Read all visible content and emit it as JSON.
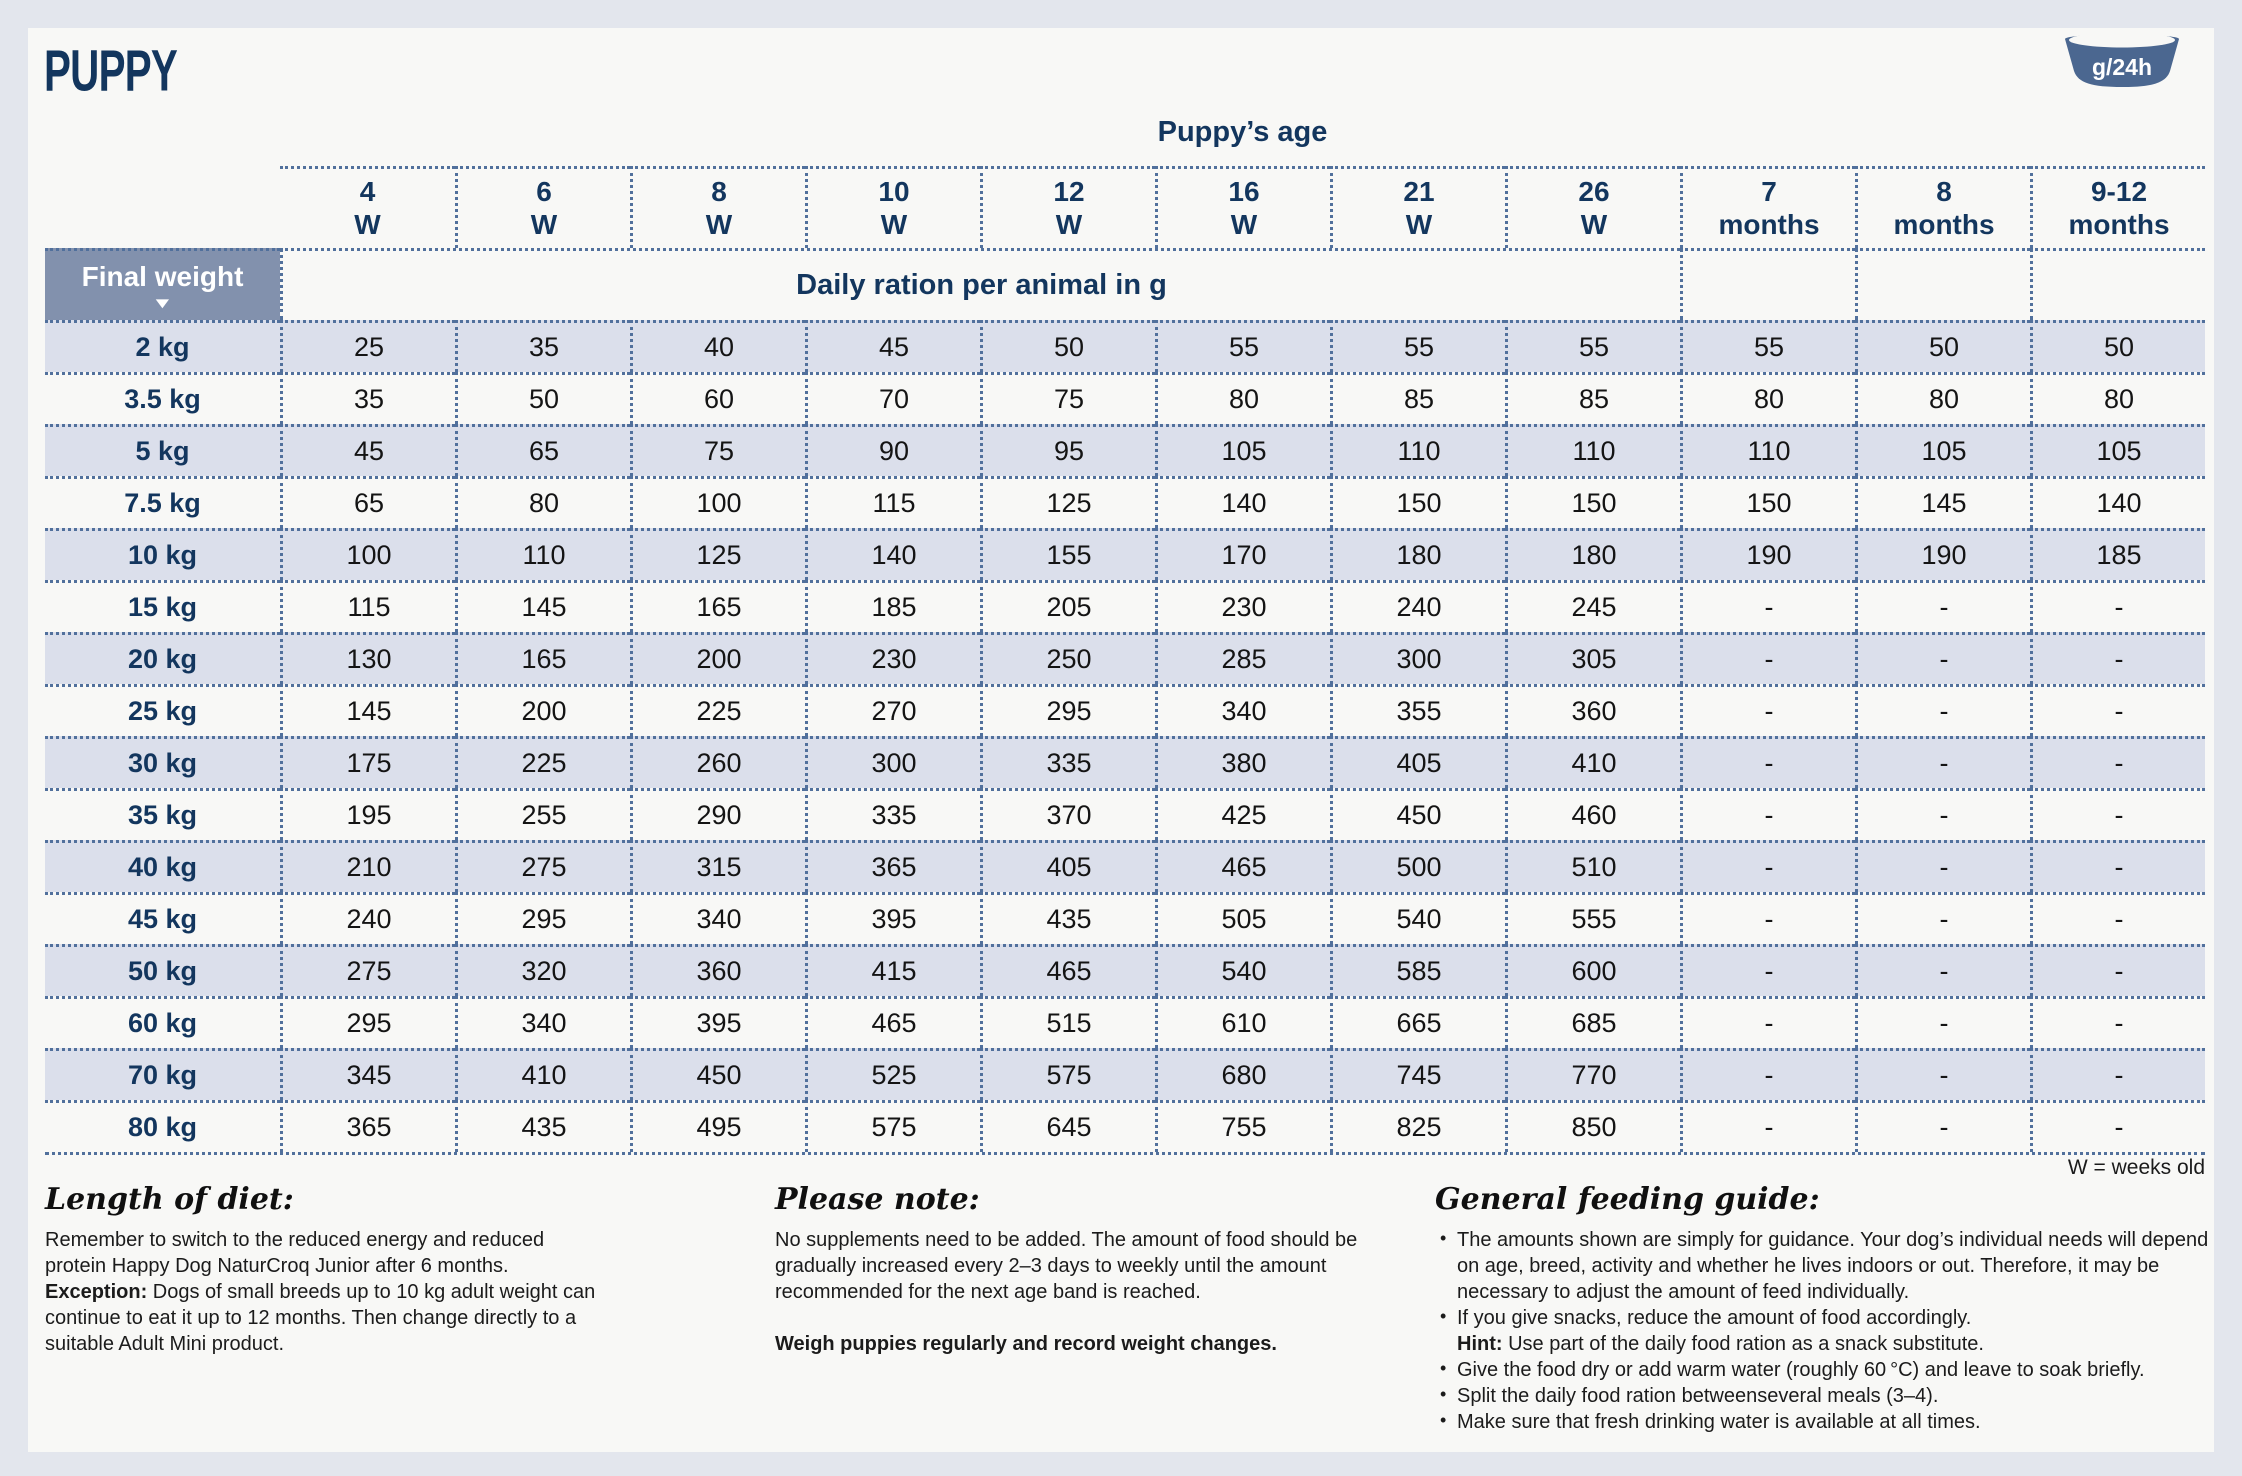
{
  "header": {
    "title": "PUPPY",
    "bowl_label": "g/24h",
    "age_axis_title": "Puppy’s age",
    "weeks_note": "W = weeks old"
  },
  "table": {
    "corner_label": "Final weight",
    "ration_header": "Daily ration per animal in g",
    "age_columns": [
      {
        "value": "4",
        "unit": "W"
      },
      {
        "value": "6",
        "unit": "W"
      },
      {
        "value": "8",
        "unit": "W"
      },
      {
        "value": "10",
        "unit": "W"
      },
      {
        "value": "12",
        "unit": "W"
      },
      {
        "value": "16",
        "unit": "W"
      },
      {
        "value": "21",
        "unit": "W"
      },
      {
        "value": "26",
        "unit": "W"
      },
      {
        "value": "7",
        "unit": "months"
      },
      {
        "value": "8",
        "unit": "months"
      },
      {
        "value": "9-12",
        "unit": "months"
      }
    ],
    "rows": [
      {
        "weight": "2 kg",
        "values": [
          "25",
          "35",
          "40",
          "45",
          "50",
          "55",
          "55",
          "55",
          "55",
          "50",
          "50"
        ]
      },
      {
        "weight": "3.5 kg",
        "values": [
          "35",
          "50",
          "60",
          "70",
          "75",
          "80",
          "85",
          "85",
          "80",
          "80",
          "80"
        ]
      },
      {
        "weight": "5 kg",
        "values": [
          "45",
          "65",
          "75",
          "90",
          "95",
          "105",
          "110",
          "110",
          "110",
          "105",
          "105"
        ]
      },
      {
        "weight": "7.5 kg",
        "values": [
          "65",
          "80",
          "100",
          "115",
          "125",
          "140",
          "150",
          "150",
          "150",
          "145",
          "140"
        ]
      },
      {
        "weight": "10 kg",
        "values": [
          "100",
          "110",
          "125",
          "140",
          "155",
          "170",
          "180",
          "180",
          "190",
          "190",
          "185"
        ]
      },
      {
        "weight": "15 kg",
        "values": [
          "115",
          "145",
          "165",
          "185",
          "205",
          "230",
          "240",
          "245",
          "-",
          "-",
          "-"
        ]
      },
      {
        "weight": "20 kg",
        "values": [
          "130",
          "165",
          "200",
          "230",
          "250",
          "285",
          "300",
          "305",
          "-",
          "-",
          "-"
        ]
      },
      {
        "weight": "25 kg",
        "values": [
          "145",
          "200",
          "225",
          "270",
          "295",
          "340",
          "355",
          "360",
          "-",
          "-",
          "-"
        ]
      },
      {
        "weight": "30 kg",
        "values": [
          "175",
          "225",
          "260",
          "300",
          "335",
          "380",
          "405",
          "410",
          "-",
          "-",
          "-"
        ]
      },
      {
        "weight": "35 kg",
        "values": [
          "195",
          "255",
          "290",
          "335",
          "370",
          "425",
          "450",
          "460",
          "-",
          "-",
          "-"
        ]
      },
      {
        "weight": "40 kg",
        "values": [
          "210",
          "275",
          "315",
          "365",
          "405",
          "465",
          "500",
          "510",
          "-",
          "-",
          "-"
        ]
      },
      {
        "weight": "45 kg",
        "values": [
          "240",
          "295",
          "340",
          "395",
          "435",
          "505",
          "540",
          "555",
          "-",
          "-",
          "-"
        ]
      },
      {
        "weight": "50 kg",
        "values": [
          "275",
          "320",
          "360",
          "415",
          "465",
          "540",
          "585",
          "600",
          "-",
          "-",
          "-"
        ]
      },
      {
        "weight": "60 kg",
        "values": [
          "295",
          "340",
          "395",
          "465",
          "515",
          "610",
          "665",
          "685",
          "-",
          "-",
          "-"
        ]
      },
      {
        "weight": "70 kg",
        "values": [
          "345",
          "410",
          "450",
          "525",
          "575",
          "680",
          "745",
          "770",
          "-",
          "-",
          "-"
        ]
      },
      {
        "weight": "80 kg",
        "values": [
          "365",
          "435",
          "495",
          "575",
          "645",
          "755",
          "825",
          "850",
          "-",
          "-",
          "-"
        ]
      }
    ]
  },
  "notes": {
    "length_of_diet": {
      "heading": "Length of diet:",
      "body": [
        [
          {
            "t": "Remember to switch to the reduced energy and reduced protein Happy Dog NaturCroq Junior after 6 months."
          }
        ],
        [
          {
            "t": "Exception:",
            "b": 1
          },
          {
            "t": " Dogs of small breeds up to 10 kg adult weight can continue to eat it up to 12 months. Then change directly to a suitable Adult Mini product."
          }
        ]
      ]
    },
    "please_note": {
      "heading": "Please note:",
      "body": [
        [
          {
            "t": "No supplements need to be added. The amount of food should be gradually increased every 2–3 days to weekly until the amount recommended for the next age band is reached."
          }
        ]
      ],
      "emphasis": "Weigh puppies regularly and record weight changes."
    },
    "general_feeding_guide": {
      "heading": "General feeding guide:",
      "bullets": [
        [
          [
            {
              "t": "The amounts shown are simply for guidance. Your dog’s individual needs will depend on age, breed, activity and whether he lives indoors or out. Therefore, it may be necessary to adjust the amount of feed individually."
            }
          ]
        ],
        [
          [
            {
              "t": "If you give snacks, reduce the amount of food accordingly."
            }
          ],
          [
            {
              "t": "Hint:",
              "b": 1
            },
            {
              "t": " Use part of the daily food ration as a snack substitute."
            }
          ]
        ],
        [
          [
            {
              "t": "Give the food dry or add warm water (roughly 60 °C) and leave to soak briefly."
            }
          ]
        ],
        [
          [
            {
              "t": "Split the daily food ration betweenseveral meals (3–4)."
            }
          ]
        ],
        [
          [
            {
              "t": "Make sure that fresh drinking water is available at all times."
            }
          ]
        ]
      ]
    },
    "colors": {
      "navy": "#13365e",
      "slate": "#4b6790",
      "row_shade": "#dbdfeb",
      "corner_bg": "#8291ad",
      "dots": "#51709c"
    }
  }
}
